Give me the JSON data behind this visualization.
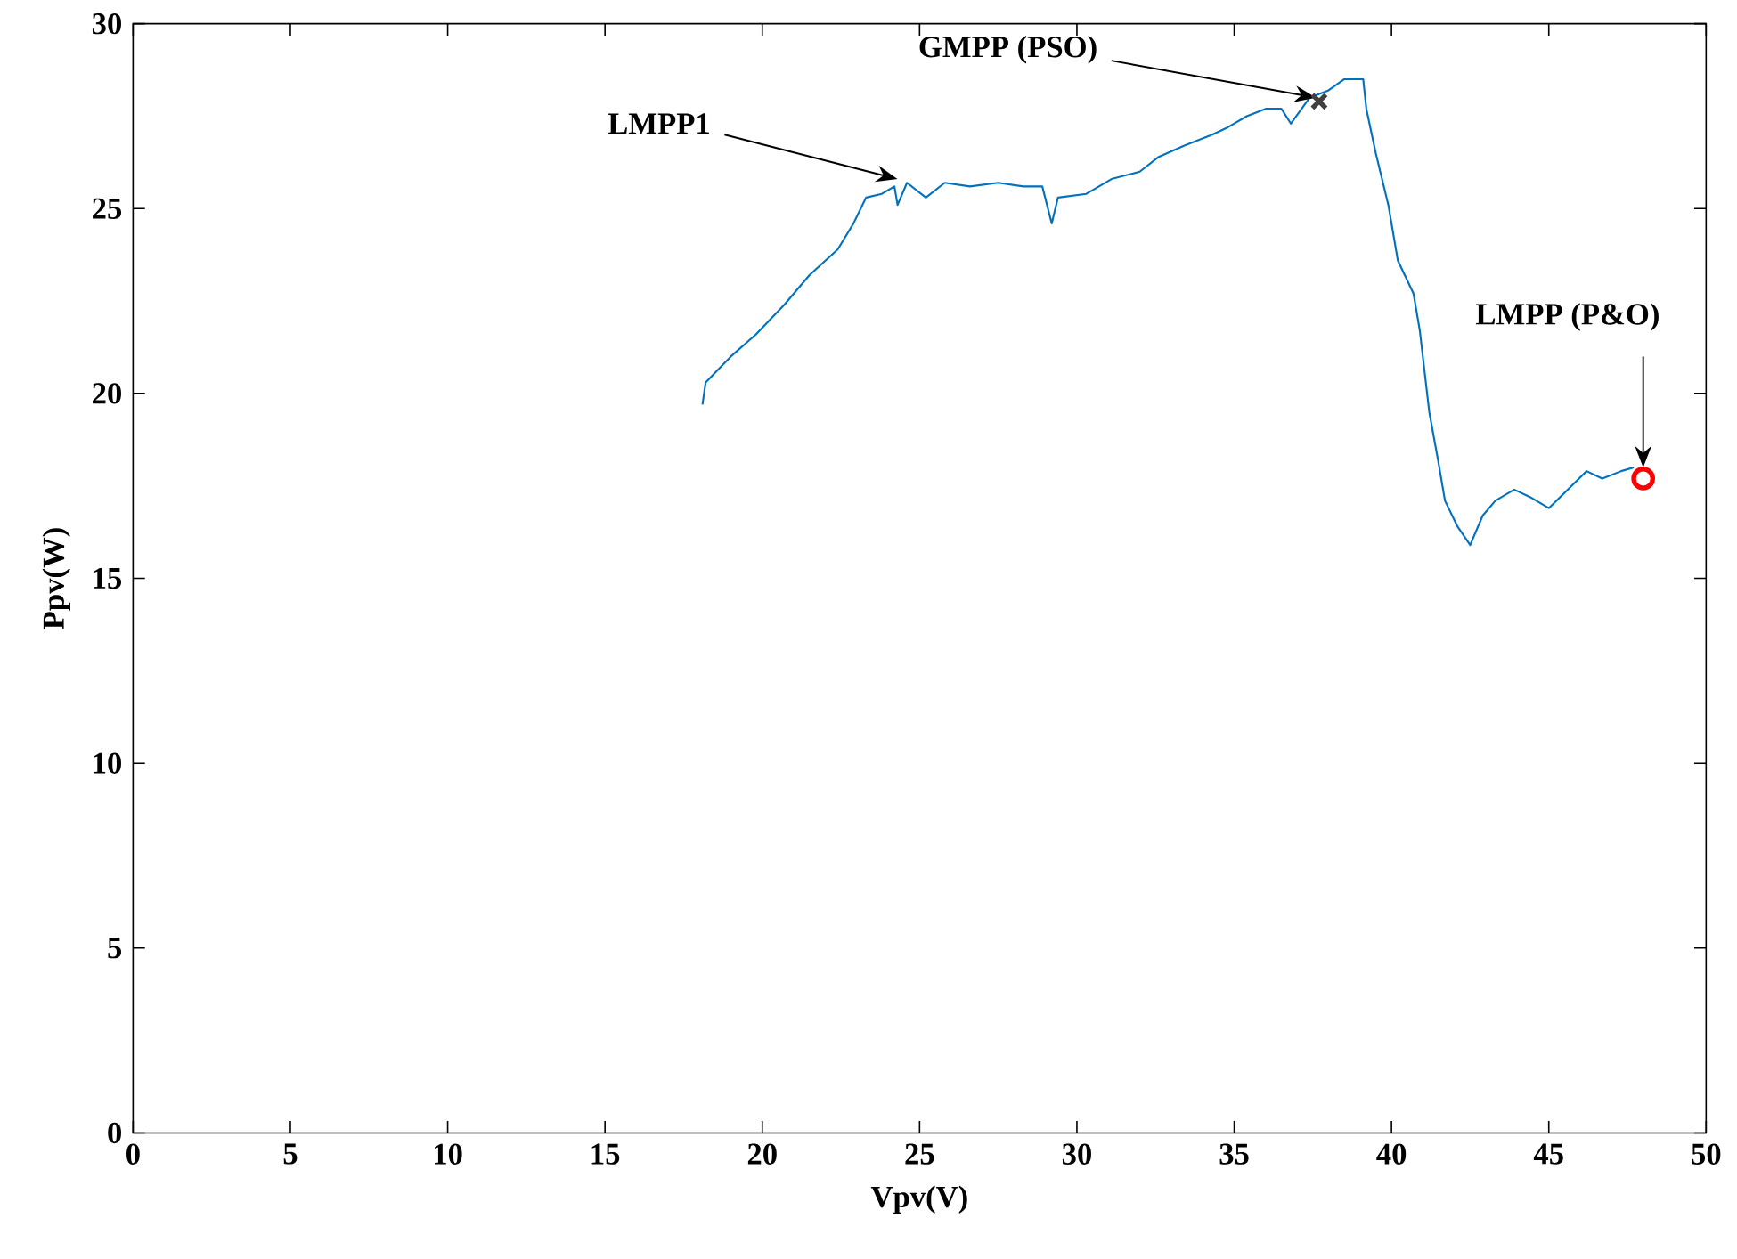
{
  "chart_data": {
    "type": "line",
    "xlabel": "Vpv(V)",
    "ylabel": "Ppv(W)",
    "xlim": [
      0,
      50
    ],
    "ylim": [
      0,
      30
    ],
    "xticks": [
      0,
      5,
      10,
      15,
      20,
      25,
      30,
      35,
      40,
      45,
      50
    ],
    "yticks": [
      0,
      5,
      10,
      15,
      20,
      25,
      30
    ],
    "series": [
      {
        "color": "#0072bd",
        "x": [
          18.1,
          18.2,
          19.0,
          19.8,
          20.7,
          21.5,
          22.4,
          22.9,
          23.3,
          23.8,
          24.2,
          24.3,
          24.6,
          25.2,
          25.8,
          26.6,
          27.5,
          28.3,
          28.9,
          29.2,
          29.4,
          30.3,
          31.1,
          32.0,
          32.6,
          33.4,
          34.3,
          34.8,
          35.4,
          36.0,
          36.5,
          36.8,
          37.4,
          38.0,
          38.5,
          39.1,
          39.2,
          39.5,
          39.9,
          40.2,
          40.7,
          40.9,
          41.2,
          41.5,
          41.7,
          42.1,
          42.5,
          42.9,
          43.3,
          43.9,
          44.4,
          45.0,
          45.6,
          46.2,
          46.7,
          47.3,
          47.7
        ],
        "values": [
          19.7,
          20.3,
          21.0,
          21.6,
          22.4,
          23.2,
          23.9,
          24.6,
          25.3,
          25.4,
          25.6,
          25.1,
          25.7,
          25.3,
          25.7,
          25.6,
          25.7,
          25.6,
          25.6,
          24.6,
          25.3,
          25.4,
          25.8,
          26.0,
          26.4,
          26.7,
          27.0,
          27.2,
          27.5,
          27.7,
          27.7,
          27.3,
          28.0,
          28.2,
          28.5,
          28.5,
          27.7,
          26.5,
          25.1,
          23.6,
          22.7,
          21.7,
          19.5,
          18.1,
          17.1,
          16.4,
          15.9,
          16.7,
          17.1,
          17.4,
          17.2,
          16.9,
          17.4,
          17.9,
          17.7,
          17.9,
          18.0
        ]
      },
      {
        "type": "scatter",
        "marker": "cross",
        "color": "#404040",
        "x": [
          37.7
        ],
        "values": [
          27.9
        ]
      },
      {
        "type": "scatter",
        "marker": "circle",
        "color": "#ff0000",
        "x": [
          48.0
        ],
        "values": [
          17.7
        ]
      }
    ],
    "annotations": [
      {
        "text": "LMPP1",
        "x": 24.3,
        "y": 25.7
      },
      {
        "text": "GMPP (PSO)",
        "x": 37.6,
        "y": 27.9
      },
      {
        "text": "LMPP (P&O)",
        "x": 48.0,
        "y": 18.0
      }
    ]
  }
}
